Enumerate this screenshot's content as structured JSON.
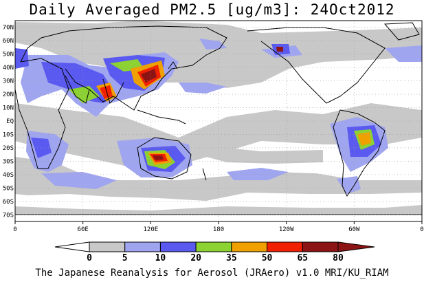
{
  "title": "Daily Averaged PM2.5 [ug/m3]: 24Oct2012",
  "footer": "The Japanese Reanalysis for Aerosol (JRAero) v1.0 MRI/KU_RIAM",
  "lat_labels": [
    "70N",
    "60N",
    "50N",
    "40N",
    "30N",
    "20N",
    "10N",
    "EQ",
    "10S",
    "20S",
    "30S",
    "40S",
    "50S",
    "60S",
    "70S"
  ],
  "lon_labels": [
    "0",
    "60E",
    "120E",
    "180",
    "120W",
    "60W",
    "0"
  ],
  "colorbar": {
    "ticks": [
      "0",
      "5",
      "10",
      "20",
      "35",
      "50",
      "65",
      "80"
    ],
    "colors": [
      "#ffffff",
      "#c8c8c8",
      "#a0a5f0",
      "#5a5af0",
      "#8cd232",
      "#f0a000",
      "#f02000",
      "#8c1414"
    ]
  },
  "legend_colors": {
    "land_outline": "#000000",
    "grid": "#9a9a9a"
  }
}
